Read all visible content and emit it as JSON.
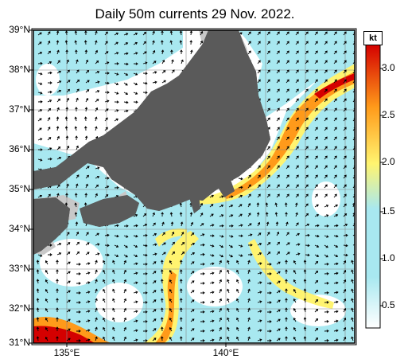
{
  "title": "Daily 50m currents 29 Nov. 2022.",
  "lat_labels": [
    "39°N",
    "38°N",
    "37°N",
    "36°N",
    "35°N",
    "34°N",
    "33°N",
    "32°N",
    "31°N"
  ],
  "lon_labels": [
    "135°E",
    "140°E"
  ],
  "colorbar": {
    "unit": "kt",
    "ticks": [
      "3.0",
      "2.5",
      "2.0",
      "1.5",
      "1.0",
      "0.5"
    ],
    "colors": [
      "#ffffff",
      "#a8e8f0",
      "#fff470",
      "#ff9a1a",
      "#d40000"
    ]
  },
  "colors": {
    "land": "#5a5a5a",
    "shallow": "#c8c8c8",
    "water": "#ffffff",
    "weak_current": "#a8e8f0"
  }
}
